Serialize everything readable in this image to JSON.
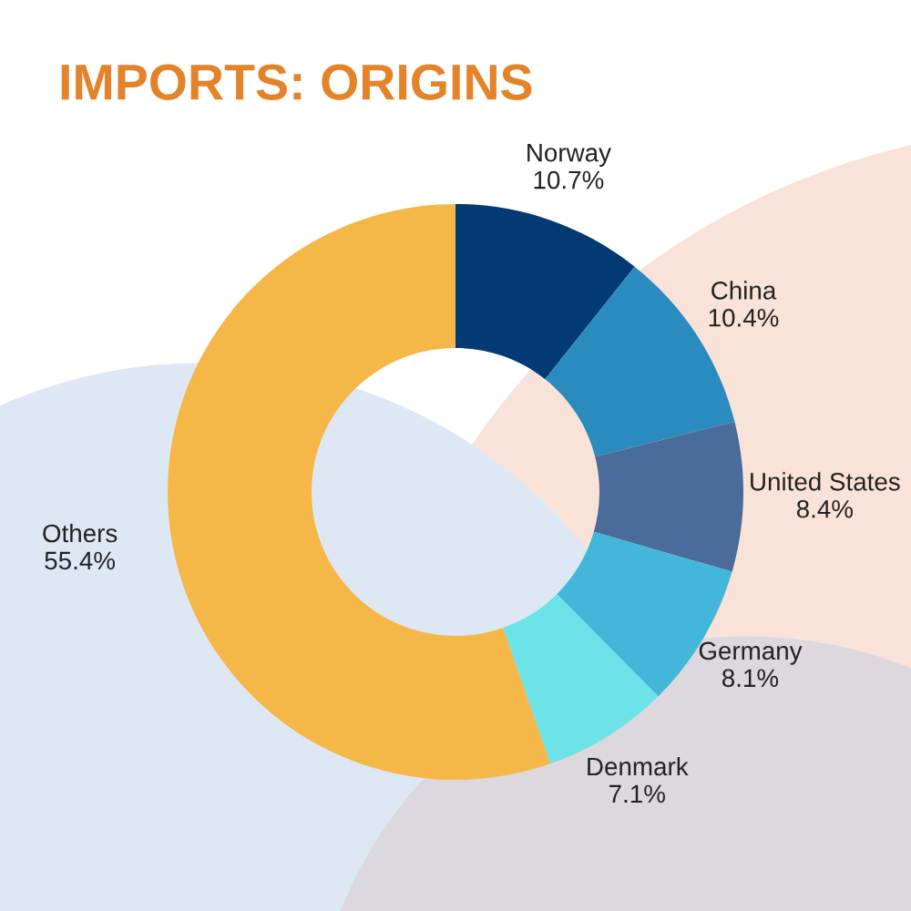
{
  "chart_data": {
    "type": "donut",
    "title": "IMPORTS: ORIGINS",
    "categories": [
      "Norway",
      "China",
      "United States",
      "Germany",
      "Denmark",
      "Others"
    ],
    "values": [
      10.7,
      10.4,
      8.4,
      8.1,
      7.1,
      55.4
    ],
    "colors": [
      "#033a73",
      "#2a8bbf",
      "#4b6b9b",
      "#43b7d9",
      "#6ce3e6",
      "#f5b748"
    ],
    "value_labels": [
      "10.7%",
      "10.4%",
      "8.4%",
      "8.1%",
      "7.1%",
      "55.4%"
    ],
    "legend": false
  }
}
